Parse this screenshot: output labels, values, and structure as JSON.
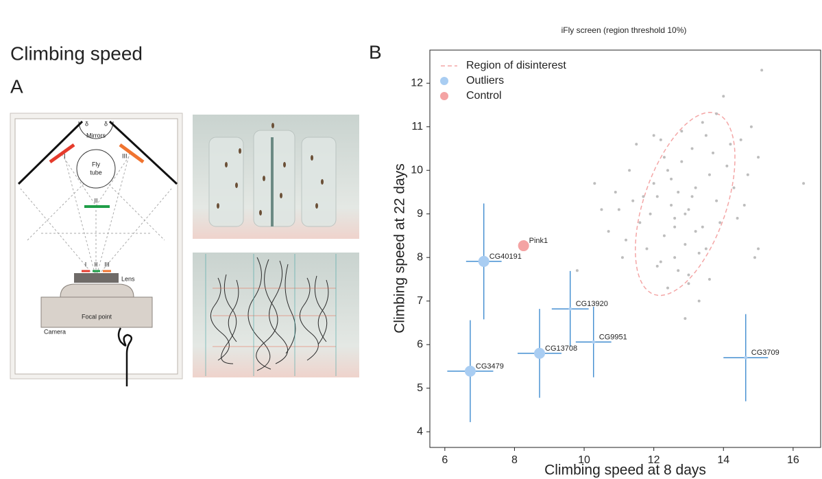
{
  "figure": {
    "title": "Climbing speed",
    "panel_a": "A",
    "panel_b": "B"
  },
  "diagram": {
    "mirrors": "Mirrors",
    "fly_tube": [
      "Fly",
      "tube"
    ],
    "numerals": [
      "I",
      "II",
      "III"
    ],
    "lens": "Lens",
    "focal_point": "Focal point",
    "camera": "Camera",
    "delta": "δ"
  },
  "chart_data": {
    "type": "scatter",
    "title": "iFly screen (region threshold 10%)",
    "xlabel": "Climbing speed at 8 days",
    "ylabel": "Climbing speed at 22 days",
    "xlim": [
      5.57,
      16.79
    ],
    "ylim": [
      3.64,
      12.76
    ],
    "xticks": [
      6,
      8,
      10,
      12,
      14,
      16
    ],
    "yticks": [
      4,
      5,
      6,
      7,
      8,
      9,
      10,
      11,
      12
    ],
    "grid": false,
    "legend": "upper left",
    "region": {
      "name": "Region of disinterest",
      "color": "#f4a6a6",
      "center": [
        12.9,
        9.23
      ],
      "axis1": [
        0.89,
        2.08
      ],
      "axis2": [
        1.12,
        -0.3
      ]
    },
    "series": [
      {
        "color": "#bdbdbd",
        "x": [
          12.1,
          12.5,
          13.0,
          13.4,
          12.8,
          13.2,
          12.3,
          11.9,
          13.6,
          12.6,
          13.1,
          12.9,
          12.4,
          13.8,
          11.6,
          12.2,
          13.5,
          12.7,
          13.3,
          12.0,
          14.1,
          11.8,
          12.9,
          13.0,
          13.7,
          12.5,
          11.4,
          14.3,
          12.8,
          13.2,
          11.2,
          14.5,
          12.1,
          13.9,
          12.6,
          13.4,
          11.0,
          14.7,
          12.3,
          13.6,
          15.1,
          10.7,
          14.8,
          12.4,
          13.1,
          11.3,
          14.2,
          10.9,
          15.0,
          12.7,
          13.8,
          11.5,
          14.4,
          12.0,
          13.5,
          9.8,
          16.3,
          10.5,
          14.0,
          12.9,
          15.0,
          13.3,
          11.7,
          14.6,
          12.2,
          10.3,
          13.0,
          11.1,
          14.9,
          12.6
        ],
        "y": [
          9.4,
          9.8,
          9.1,
          8.7,
          10.2,
          9.6,
          8.5,
          9.0,
          9.9,
          8.9,
          10.5,
          8.3,
          10.0,
          9.3,
          8.8,
          7.9,
          10.8,
          9.5,
          8.1,
          9.7,
          10.1,
          8.2,
          9.0,
          7.6,
          10.4,
          9.2,
          9.3,
          9.6,
          10.9,
          8.6,
          8.4,
          10.7,
          7.8,
          8.8,
          8.0,
          11.1,
          9.1,
          9.9,
          10.3,
          7.5,
          12.3,
          8.6,
          11.0,
          7.3,
          9.4,
          10.0,
          10.6,
          9.5,
          10.3,
          7.7,
          11.3,
          10.6,
          8.9,
          10.8,
          8.2,
          7.7,
          9.7,
          9.1,
          11.7,
          6.6,
          8.2,
          7.0,
          9.4,
          9.2,
          10.7,
          9.7,
          7.4,
          8.0,
          8.0,
          8.7
        ]
      },
      {
        "name": "Outliers",
        "color": "#a9cdf2",
        "error_color": "#1f78c8",
        "labels": [
          "CG40191",
          "CG13920",
          "CG9951",
          "CG13708",
          "CG3479",
          "CG3709"
        ],
        "x": [
          7.12,
          9.6,
          10.27,
          8.72,
          6.73,
          14.64
        ],
        "y": [
          7.91,
          6.82,
          6.06,
          5.8,
          5.39,
          5.7
        ],
        "xerr": [
          0.51,
          0.53,
          0.51,
          0.63,
          0.66,
          0.64
        ],
        "yerr": [
          1.33,
          0.87,
          0.81,
          1.02,
          1.17,
          1.0
        ],
        "sizes": [
          8,
          2.5,
          2.5,
          8,
          8,
          2.5
        ]
      },
      {
        "name": "Control",
        "color": "#f4a3a3",
        "labels": [
          "Pink1"
        ],
        "x": [
          8.26
        ],
        "y": [
          8.27
        ],
        "sizes": [
          8
        ]
      }
    ]
  }
}
